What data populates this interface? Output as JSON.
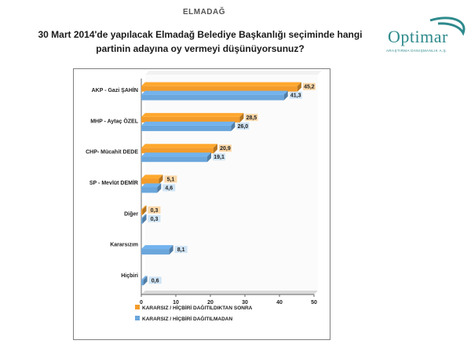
{
  "header": {
    "location": "ELMADAĞ"
  },
  "question": {
    "line1": "30 Mart 2014'de yapılacak Elmadağ  Belediye Başkanlığı seçiminde hangi",
    "line2": "partinin  adayına oy vermeyi düşünüyorsunuz?"
  },
  "logo": {
    "name": "Optimar",
    "subtitle": "ARAŞTIRMA DANIŞMANLIK A.Ş."
  },
  "colors": {
    "series_after": "#f39c2b",
    "series_before": "#6aa6dc",
    "label_after_bg": "#fbd7a8",
    "label_before_bg": "#cfe4f5",
    "axis": "#666666",
    "grid_wall": "#f2f2f2"
  },
  "chart_data": {
    "type": "bar",
    "orientation": "horizontal",
    "categories": [
      "AKP - Gazi ŞAHİN",
      "MHP - Aytaç ÖZEL",
      "CHP- Mücahit DEDE",
      "SP - Mevlüt DEMİR",
      "Diğer",
      "Kararsızım",
      "Hiçbiri"
    ],
    "series": [
      {
        "name": "KARARSIZ / HİÇBİRİ DAĞITILDIKTAN SONRA",
        "values": [
          45.2,
          28.5,
          20.9,
          5.1,
          0.3,
          null,
          null
        ],
        "labels": [
          "45,2",
          "28,5",
          "20,9",
          "5,1",
          "0,3",
          "",
          ""
        ]
      },
      {
        "name": "KARARSIZ / HİÇBİRİ DAĞITILMADAN",
        "values": [
          41.3,
          26.0,
          19.1,
          4.6,
          0.3,
          8.1,
          0.6
        ],
        "labels": [
          "41,3",
          "26,0",
          "19,1",
          "4,6",
          "0,3",
          "8,1",
          "0,6"
        ]
      }
    ],
    "xlim": [
      0,
      50
    ],
    "xticks": [
      0,
      10,
      20,
      30,
      40,
      50
    ],
    "title": "",
    "legend": "bottom"
  }
}
